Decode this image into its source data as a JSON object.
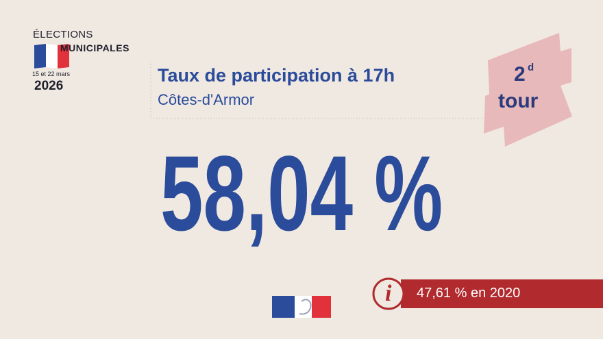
{
  "logo": {
    "line1": "ÉLECTIONS",
    "line2": "MUNICIPALES",
    "dates": "15 et 22 mars",
    "year": "2026"
  },
  "header": {
    "title": "Taux de participation à 17h",
    "subtitle": "Côtes-d'Armor"
  },
  "badge": {
    "number": "2",
    "suffix": "d",
    "label": "tour"
  },
  "main_value": "58,04 %",
  "info": {
    "icon": "i",
    "text": "47,61 % en 2020"
  }
}
